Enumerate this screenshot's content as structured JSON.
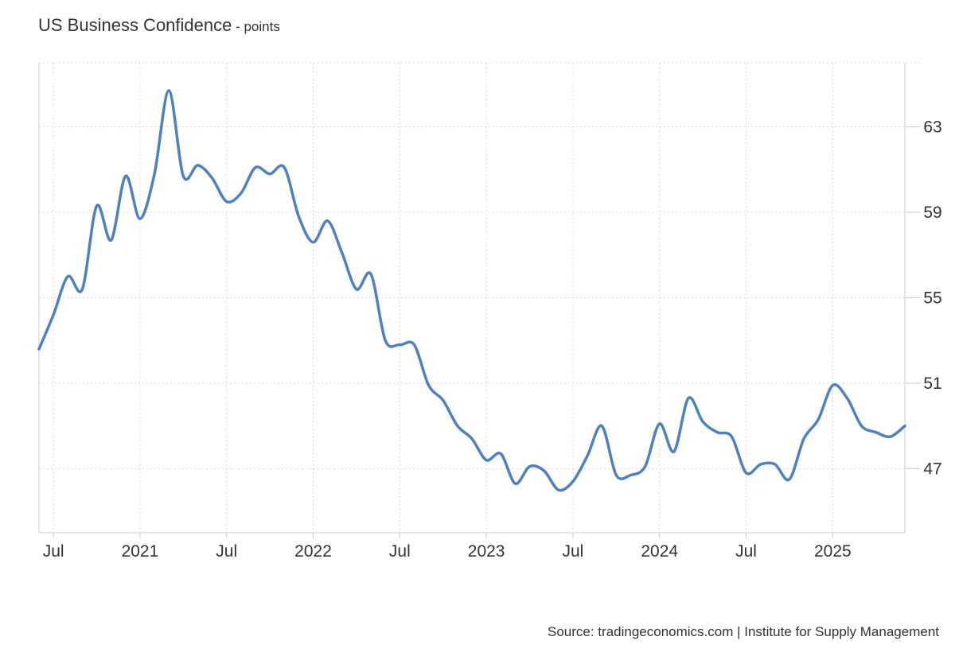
{
  "header": {
    "title": "US Business Confidence",
    "unit": " - points"
  },
  "footer": {
    "source": "Source: tradingeconomics.com | Institute for Supply Management"
  },
  "colors": {
    "line": "#4f81bd",
    "grid": "#d9d9d9",
    "axis": "#cccccc"
  },
  "chart_data": {
    "type": "line",
    "title": "US Business Confidence",
    "unit": "points",
    "xlabel": "",
    "ylabel": "",
    "grid": true,
    "y_axis_side": "right",
    "ylim": [
      44,
      66
    ],
    "y_ticks": [
      47,
      51,
      55,
      59,
      63
    ],
    "x_ticks": [
      {
        "label": "Jul",
        "date": "2020-07"
      },
      {
        "label": "2021",
        "date": "2021-01"
      },
      {
        "label": "Jul",
        "date": "2021-07"
      },
      {
        "label": "2022",
        "date": "2022-01"
      },
      {
        "label": "Jul",
        "date": "2022-07"
      },
      {
        "label": "2023",
        "date": "2023-01"
      },
      {
        "label": "Jul",
        "date": "2023-07"
      },
      {
        "label": "2024",
        "date": "2024-01"
      },
      {
        "label": "Jul",
        "date": "2024-07"
      },
      {
        "label": "2025",
        "date": "2025-01"
      }
    ],
    "series": [
      {
        "dates": [
          "2020-06",
          "2020-07",
          "2020-08",
          "2020-09",
          "2020-10",
          "2020-11",
          "2020-12",
          "2021-01",
          "2021-02",
          "2021-03",
          "2021-04",
          "2021-05",
          "2021-06",
          "2021-07",
          "2021-08",
          "2021-09",
          "2021-10",
          "2021-11",
          "2021-12",
          "2022-01",
          "2022-02",
          "2022-03",
          "2022-04",
          "2022-05",
          "2022-06",
          "2022-07",
          "2022-08",
          "2022-09",
          "2022-10",
          "2022-11",
          "2022-12",
          "2023-01",
          "2023-02",
          "2023-03",
          "2023-04",
          "2023-05",
          "2023-06",
          "2023-07",
          "2023-08",
          "2023-09",
          "2023-10",
          "2023-11",
          "2023-12",
          "2024-01",
          "2024-02",
          "2024-03",
          "2024-04",
          "2024-05",
          "2024-06",
          "2024-07",
          "2024-08",
          "2024-09",
          "2024-10",
          "2024-11",
          "2024-12",
          "2025-01",
          "2025-02",
          "2025-03",
          "2025-04",
          "2025-05",
          "2025-06"
        ],
        "values": [
          52.6,
          54.2,
          56.0,
          55.4,
          59.3,
          57.7,
          60.7,
          58.7,
          60.8,
          64.7,
          60.7,
          61.2,
          60.6,
          59.5,
          59.9,
          61.1,
          60.8,
          61.1,
          58.8,
          57.6,
          58.6,
          57.1,
          55.4,
          56.1,
          53.0,
          52.8,
          52.8,
          50.9,
          50.2,
          49.0,
          48.4,
          47.4,
          47.7,
          46.3,
          47.1,
          46.9,
          46.0,
          46.4,
          47.6,
          49.0,
          46.7,
          46.7,
          47.1,
          49.1,
          47.8,
          50.3,
          49.2,
          48.7,
          48.5,
          46.8,
          47.2,
          47.2,
          46.5,
          48.4,
          49.3,
          50.9,
          50.3,
          49.0,
          48.7,
          48.5,
          49.0
        ]
      }
    ]
  }
}
